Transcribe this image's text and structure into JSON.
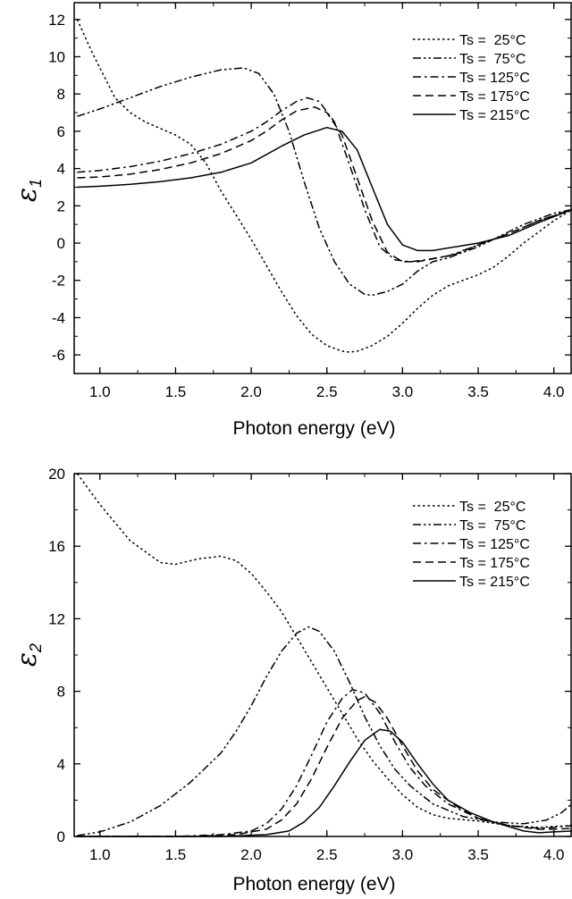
{
  "chart_data": [
    {
      "type": "line",
      "xlabel": "Photon energy (eV)",
      "ylabel": "ε",
      "ylabel_subscript": "1",
      "xlim": [
        0.83,
        4.12
      ],
      "ylim": [
        -7.0,
        12.9
      ],
      "xticks": [
        1.0,
        1.5,
        2.0,
        2.5,
        3.0,
        3.5,
        4.0
      ],
      "xtick_labels": [
        "1.0",
        "1.5",
        "2.0",
        "2.5",
        "3.0",
        "3.5",
        "4.0"
      ],
      "yticks": [
        -6,
        -4,
        -2,
        0,
        2,
        4,
        6,
        8,
        10,
        12
      ],
      "ytick_labels": [
        "-6",
        "-4",
        "-2",
        "0",
        "2",
        "4",
        "6",
        "8",
        "10",
        "12"
      ],
      "legend_position": "top-right",
      "series": [
        {
          "name": "Ts =  25°C",
          "dash": "dot",
          "points": [
            [
              0.85,
              12.0
            ],
            [
              0.95,
              10.2
            ],
            [
              1.1,
              7.8
            ],
            [
              1.2,
              7.0
            ],
            [
              1.3,
              6.5
            ],
            [
              1.5,
              5.8
            ],
            [
              1.6,
              5.3
            ],
            [
              1.7,
              4.3
            ],
            [
              1.8,
              2.8
            ],
            [
              1.9,
              1.5
            ],
            [
              2.0,
              0.2
            ],
            [
              2.1,
              -1.2
            ],
            [
              2.2,
              -2.6
            ],
            [
              2.3,
              -3.9
            ],
            [
              2.4,
              -4.9
            ],
            [
              2.5,
              -5.5
            ],
            [
              2.6,
              -5.8
            ],
            [
              2.65,
              -5.85
            ],
            [
              2.7,
              -5.8
            ],
            [
              2.8,
              -5.5
            ],
            [
              2.9,
              -5.0
            ],
            [
              3.0,
              -4.3
            ],
            [
              3.1,
              -3.5
            ],
            [
              3.2,
              -2.8
            ],
            [
              3.3,
              -2.3
            ],
            [
              3.4,
              -2.0
            ],
            [
              3.5,
              -1.7
            ],
            [
              3.6,
              -1.3
            ],
            [
              3.7,
              -0.7
            ],
            [
              3.8,
              0.0
            ],
            [
              3.9,
              0.6
            ],
            [
              4.0,
              1.2
            ],
            [
              4.12,
              1.8
            ]
          ]
        },
        {
          "name": "Ts =  75°C",
          "dash": "dash-dot-dot",
          "points": [
            [
              0.85,
              6.8
            ],
            [
              1.0,
              7.2
            ],
            [
              1.2,
              7.8
            ],
            [
              1.4,
              8.4
            ],
            [
              1.6,
              8.9
            ],
            [
              1.8,
              9.3
            ],
            [
              1.95,
              9.4
            ],
            [
              2.05,
              9.1
            ],
            [
              2.15,
              8.0
            ],
            [
              2.25,
              6.0
            ],
            [
              2.35,
              3.3
            ],
            [
              2.45,
              0.8
            ],
            [
              2.55,
              -1.0
            ],
            [
              2.65,
              -2.2
            ],
            [
              2.75,
              -2.75
            ],
            [
              2.8,
              -2.8
            ],
            [
              2.9,
              -2.6
            ],
            [
              3.0,
              -2.2
            ],
            [
              3.1,
              -1.5
            ],
            [
              3.2,
              -1.0
            ],
            [
              3.3,
              -0.8
            ],
            [
              3.4,
              -0.5
            ],
            [
              3.5,
              -0.2
            ],
            [
              3.6,
              0.2
            ],
            [
              3.7,
              0.6
            ],
            [
              3.8,
              1.0
            ],
            [
              3.9,
              1.3
            ],
            [
              4.0,
              1.6
            ],
            [
              4.12,
              1.8
            ]
          ]
        },
        {
          "name": "Ts = 125°C",
          "dash": "dash-dot",
          "points": [
            [
              0.85,
              3.8
            ],
            [
              1.0,
              3.9
            ],
            [
              1.2,
              4.1
            ],
            [
              1.4,
              4.4
            ],
            [
              1.6,
              4.8
            ],
            [
              1.8,
              5.3
            ],
            [
              2.0,
              6.0
            ],
            [
              2.1,
              6.5
            ],
            [
              2.2,
              7.1
            ],
            [
              2.3,
              7.6
            ],
            [
              2.37,
              7.8
            ],
            [
              2.45,
              7.6
            ],
            [
              2.55,
              6.5
            ],
            [
              2.65,
              4.2
            ],
            [
              2.75,
              1.8
            ],
            [
              2.85,
              -0.2
            ],
            [
              2.95,
              -0.9
            ],
            [
              3.05,
              -1.0
            ],
            [
              3.15,
              -0.9
            ],
            [
              3.3,
              -0.7
            ],
            [
              3.5,
              -0.1
            ],
            [
              3.7,
              0.5
            ],
            [
              3.9,
              1.2
            ],
            [
              4.12,
              1.8
            ]
          ]
        },
        {
          "name": "Ts = 175°C",
          "dash": "dash",
          "points": [
            [
              0.85,
              3.5
            ],
            [
              1.0,
              3.55
            ],
            [
              1.2,
              3.7
            ],
            [
              1.4,
              3.95
            ],
            [
              1.6,
              4.3
            ],
            [
              1.8,
              4.8
            ],
            [
              2.0,
              5.5
            ],
            [
              2.1,
              6.0
            ],
            [
              2.2,
              6.6
            ],
            [
              2.3,
              7.1
            ],
            [
              2.42,
              7.3
            ],
            [
              2.5,
              7.0
            ],
            [
              2.6,
              5.8
            ],
            [
              2.7,
              3.5
            ],
            [
              2.8,
              1.2
            ],
            [
              2.9,
              -0.5
            ],
            [
              3.0,
              -1.0
            ],
            [
              3.1,
              -1.0
            ],
            [
              3.2,
              -0.85
            ],
            [
              3.35,
              -0.6
            ],
            [
              3.5,
              -0.1
            ],
            [
              3.7,
              0.5
            ],
            [
              3.9,
              1.2
            ],
            [
              4.12,
              1.8
            ]
          ]
        },
        {
          "name": "Ts = 215°C",
          "dash": "solid",
          "points": [
            [
              0.85,
              3.0
            ],
            [
              1.0,
              3.05
            ],
            [
              1.2,
              3.15
            ],
            [
              1.4,
              3.3
            ],
            [
              1.6,
              3.5
            ],
            [
              1.8,
              3.8
            ],
            [
              2.0,
              4.3
            ],
            [
              2.2,
              5.2
            ],
            [
              2.35,
              5.8
            ],
            [
              2.5,
              6.2
            ],
            [
              2.6,
              6.0
            ],
            [
              2.7,
              5.0
            ],
            [
              2.8,
              3.0
            ],
            [
              2.9,
              1.0
            ],
            [
              3.0,
              -0.1
            ],
            [
              3.1,
              -0.4
            ],
            [
              3.2,
              -0.4
            ],
            [
              3.35,
              -0.2
            ],
            [
              3.5,
              0.0
            ],
            [
              3.7,
              0.4
            ],
            [
              3.9,
              1.1
            ],
            [
              4.12,
              1.8
            ]
          ]
        }
      ]
    },
    {
      "type": "line",
      "xlabel": "Photon energy (eV)",
      "ylabel": "ε",
      "ylabel_subscript": "2",
      "xlim": [
        0.83,
        4.12
      ],
      "ylim": [
        0.0,
        20.0
      ],
      "xticks": [
        1.0,
        1.5,
        2.0,
        2.5,
        3.0,
        3.5,
        4.0
      ],
      "xtick_labels": [
        "1.0",
        "1.5",
        "2.0",
        "2.5",
        "3.0",
        "3.5",
        "4.0"
      ],
      "yticks": [
        0,
        4,
        8,
        12,
        16,
        20
      ],
      "ytick_labels": [
        "0",
        "4",
        "8",
        "12",
        "16",
        "20"
      ],
      "legend_position": "top-right",
      "series": [
        {
          "name": "Ts =  25°C",
          "dash": "dot",
          "points": [
            [
              0.85,
              20.0
            ],
            [
              1.0,
              18.3
            ],
            [
              1.2,
              16.3
            ],
            [
              1.4,
              15.1
            ],
            [
              1.5,
              15.0
            ],
            [
              1.65,
              15.3
            ],
            [
              1.8,
              15.45
            ],
            [
              1.9,
              15.2
            ],
            [
              2.0,
              14.5
            ],
            [
              2.1,
              13.5
            ],
            [
              2.2,
              12.4
            ],
            [
              2.3,
              11.0
            ],
            [
              2.4,
              9.6
            ],
            [
              2.5,
              8.2
            ],
            [
              2.6,
              6.8
            ],
            [
              2.7,
              5.4
            ],
            [
              2.8,
              4.2
            ],
            [
              2.9,
              3.2
            ],
            [
              3.0,
              2.3
            ],
            [
              3.1,
              1.6
            ],
            [
              3.2,
              1.2
            ],
            [
              3.3,
              1.0
            ],
            [
              3.5,
              0.85
            ],
            [
              3.7,
              0.6
            ],
            [
              3.9,
              0.5
            ],
            [
              4.0,
              0.55
            ],
            [
              4.12,
              0.6
            ]
          ]
        },
        {
          "name": "Ts =  75°C",
          "dash": "dash-dot-dot",
          "points": [
            [
              0.85,
              0.05
            ],
            [
              1.0,
              0.25
            ],
            [
              1.2,
              0.8
            ],
            [
              1.4,
              1.7
            ],
            [
              1.6,
              3.0
            ],
            [
              1.8,
              4.6
            ],
            [
              1.9,
              5.8
            ],
            [
              2.0,
              7.2
            ],
            [
              2.1,
              8.8
            ],
            [
              2.2,
              10.2
            ],
            [
              2.3,
              11.2
            ],
            [
              2.38,
              11.55
            ],
            [
              2.45,
              11.3
            ],
            [
              2.55,
              10.2
            ],
            [
              2.65,
              8.5
            ],
            [
              2.75,
              6.6
            ],
            [
              2.85,
              5.0
            ],
            [
              2.95,
              3.7
            ],
            [
              3.05,
              2.8
            ],
            [
              3.2,
              1.8
            ],
            [
              3.4,
              1.1
            ],
            [
              3.6,
              0.8
            ],
            [
              3.8,
              0.7
            ],
            [
              3.95,
              0.9
            ],
            [
              4.05,
              1.3
            ],
            [
              4.12,
              1.8
            ]
          ]
        },
        {
          "name": "Ts = 125°C",
          "dash": "dash-dot",
          "points": [
            [
              0.85,
              0.0
            ],
            [
              1.5,
              0.0
            ],
            [
              1.8,
              0.1
            ],
            [
              2.0,
              0.3
            ],
            [
              2.1,
              0.7
            ],
            [
              2.2,
              1.5
            ],
            [
              2.3,
              2.8
            ],
            [
              2.4,
              4.5
            ],
            [
              2.5,
              6.3
            ],
            [
              2.6,
              7.6
            ],
            [
              2.67,
              8.1
            ],
            [
              2.75,
              7.9
            ],
            [
              2.85,
              6.8
            ],
            [
              2.95,
              5.2
            ],
            [
              3.05,
              3.8
            ],
            [
              3.15,
              2.8
            ],
            [
              3.3,
              1.8
            ],
            [
              3.5,
              1.0
            ],
            [
              3.7,
              0.6
            ],
            [
              3.9,
              0.45
            ],
            [
              4.0,
              0.5
            ],
            [
              4.12,
              0.6
            ]
          ]
        },
        {
          "name": "Ts = 175°C",
          "dash": "dash",
          "points": [
            [
              0.85,
              0.0
            ],
            [
              1.6,
              0.0
            ],
            [
              1.9,
              0.1
            ],
            [
              2.1,
              0.4
            ],
            [
              2.2,
              0.9
            ],
            [
              2.3,
              1.8
            ],
            [
              2.4,
              3.2
            ],
            [
              2.5,
              4.9
            ],
            [
              2.6,
              6.5
            ],
            [
              2.7,
              7.5
            ],
            [
              2.75,
              7.7
            ],
            [
              2.82,
              7.4
            ],
            [
              2.9,
              6.5
            ],
            [
              3.0,
              5.0
            ],
            [
              3.1,
              3.6
            ],
            [
              3.2,
              2.6
            ],
            [
              3.35,
              1.7
            ],
            [
              3.5,
              1.0
            ],
            [
              3.7,
              0.6
            ],
            [
              3.9,
              0.4
            ],
            [
              4.0,
              0.4
            ],
            [
              4.12,
              0.45
            ]
          ]
        },
        {
          "name": "Ts = 215°C",
          "dash": "solid",
          "points": [
            [
              0.85,
              0.0
            ],
            [
              1.8,
              0.0
            ],
            [
              2.1,
              0.1
            ],
            [
              2.25,
              0.3
            ],
            [
              2.35,
              0.8
            ],
            [
              2.45,
              1.6
            ],
            [
              2.55,
              2.8
            ],
            [
              2.65,
              4.1
            ],
            [
              2.75,
              5.3
            ],
            [
              2.85,
              5.9
            ],
            [
              2.92,
              5.8
            ],
            [
              3.0,
              5.2
            ],
            [
              3.1,
              4.0
            ],
            [
              3.2,
              2.9
            ],
            [
              3.3,
              2.0
            ],
            [
              3.45,
              1.3
            ],
            [
              3.6,
              0.8
            ],
            [
              3.8,
              0.3
            ],
            [
              3.9,
              0.2
            ],
            [
              4.0,
              0.25
            ],
            [
              4.12,
              0.3
            ]
          ]
        }
      ]
    }
  ]
}
